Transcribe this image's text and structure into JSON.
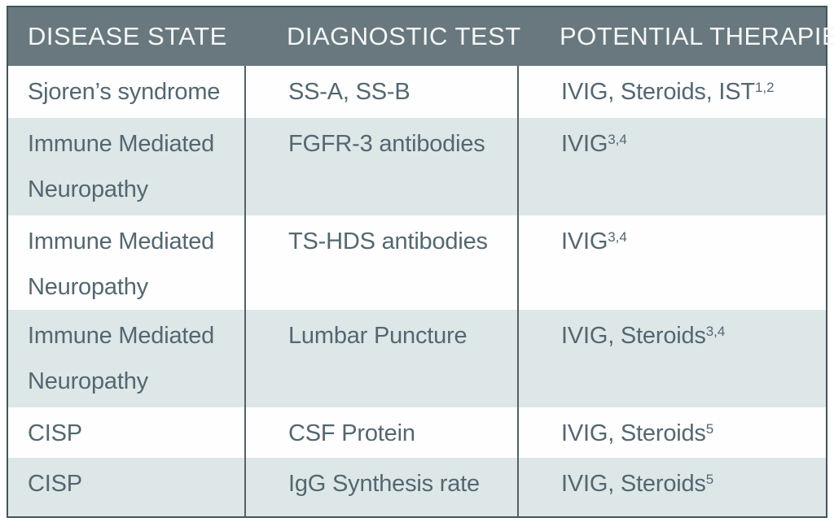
{
  "table": {
    "columns": [
      {
        "label": "DISEASE STATE"
      },
      {
        "label": "DIAGNOSTIC TEST"
      },
      {
        "label": "POTENTIAL THERAPIES"
      }
    ],
    "rows": [
      {
        "disease_state": "Sjoren’s syndrome",
        "diagnostic_test": "SS-A, SS-B",
        "potential_therapies": "IVIG, Steroids, IST",
        "therapies_superscript": "1,2"
      },
      {
        "disease_state": "Immune Mediated Neuropathy",
        "diagnostic_test": "FGFR-3 antibodies",
        "potential_therapies": "IVIG",
        "therapies_superscript": "3,4"
      },
      {
        "disease_state": "Immune Mediated Neuropathy",
        "diagnostic_test": "TS-HDS antibodies",
        "potential_therapies": "IVIG",
        "therapies_superscript": "3,4"
      },
      {
        "disease_state": "Immune Mediated Neuropathy",
        "diagnostic_test": "Lumbar Puncture",
        "potential_therapies": "IVIG, Steroids",
        "therapies_superscript": "3,4"
      },
      {
        "disease_state": "CISP",
        "diagnostic_test": "CSF Protein",
        "potential_therapies": "IVIG, Steroids",
        "therapies_superscript": "5"
      },
      {
        "disease_state": "CISP",
        "diagnostic_test": "IgG Synthesis rate",
        "potential_therapies": "IVIG, Steroids",
        "therapies_superscript": "5"
      }
    ]
  },
  "colors": {
    "header_bg": "#68787e",
    "header_text": "#f5f7f7",
    "body_text": "#546770",
    "row_bg": "#fefefe",
    "row_alt_bg": "#dde7e8",
    "border": "#526168",
    "border_outer": "#46545b"
  }
}
